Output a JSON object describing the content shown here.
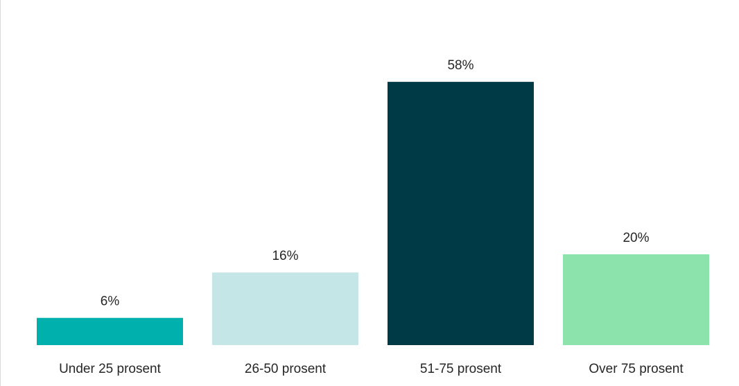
{
  "chart_data": {
    "type": "bar",
    "title": "",
    "xlabel": "",
    "ylabel": "",
    "categories": [
      "Under 25 prosent",
      "26-50 prosent",
      "51-75 prosent",
      "Over 75 prosent"
    ],
    "values": [
      6,
      16,
      58,
      20
    ],
    "data_labels": [
      "6%",
      "16%",
      "58%",
      "20%"
    ],
    "ylim": [
      0,
      67
    ],
    "grid": false,
    "legend": "none",
    "colors": [
      "#00B0AC",
      "#C5E6E6",
      "#003A47",
      "#8CE3AC"
    ]
  }
}
